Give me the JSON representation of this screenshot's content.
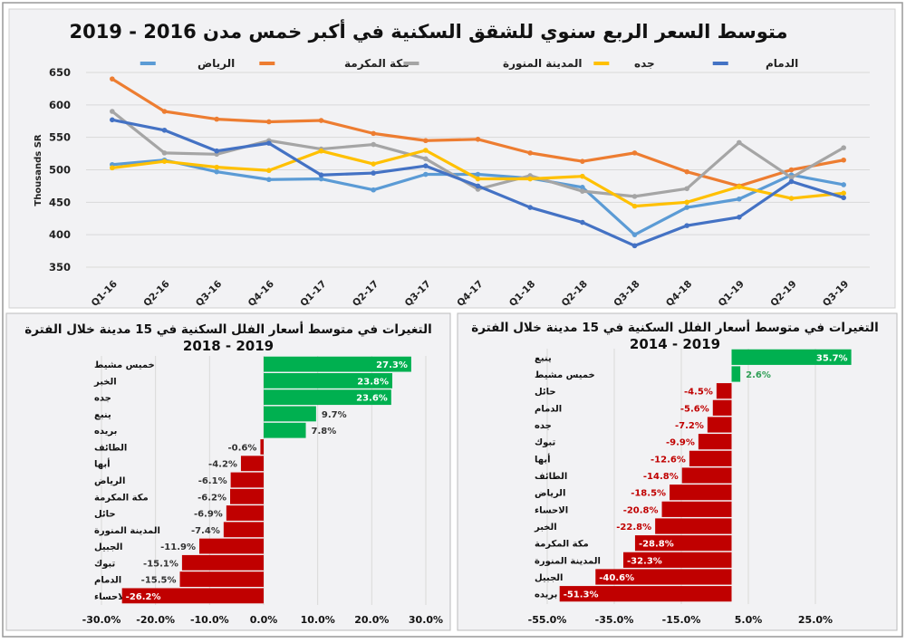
{
  "chart_data": [
    {
      "type": "line",
      "title": "متوسط السعر الربع سنوي للشقق السكنية في أكبر خمس مدن 2016 - 2019",
      "ylabel": "Thousands SR",
      "xlabel": "",
      "ylim": [
        350,
        650
      ],
      "yticks": [
        350,
        400,
        450,
        500,
        550,
        600,
        650
      ],
      "grid": true,
      "legend": "top",
      "categories": [
        "Q1-16",
        "Q2-16",
        "Q3-16",
        "Q4-16",
        "Q1-17",
        "Q2-17",
        "Q3-17",
        "Q4-17",
        "Q1-18",
        "Q2-18",
        "Q3-18",
        "Q4-18",
        "Q1-19",
        "Q2-19",
        "Q3-19"
      ],
      "series": [
        {
          "name": "الرياض",
          "color": "#5b9bd5",
          "values": [
            508,
            515,
            497,
            485,
            486,
            469,
            493,
            493,
            487,
            473,
            400,
            442,
            455,
            492,
            477
          ]
        },
        {
          "name": "مكة المكرمة",
          "color": "#ed7d31",
          "values": [
            640,
            590,
            578,
            574,
            576,
            556,
            545,
            547,
            526,
            513,
            526,
            497,
            475,
            500,
            515
          ]
        },
        {
          "name": "المدينة المنورة",
          "color": "#a5a5a5",
          "values": [
            590,
            526,
            524,
            545,
            532,
            539,
            517,
            470,
            491,
            467,
            459,
            471,
            542,
            488,
            534
          ]
        },
        {
          "name": "جده",
          "color": "#ffc000",
          "values": [
            503,
            513,
            504,
            499,
            529,
            509,
            530,
            486,
            486,
            490,
            444,
            450,
            474,
            456,
            464
          ]
        },
        {
          "name": "الدمام",
          "color": "#4472c4",
          "values": [
            577,
            561,
            529,
            541,
            492,
            495,
            506,
            475,
            442,
            419,
            383,
            414,
            427,
            482,
            457
          ]
        }
      ]
    },
    {
      "type": "bar",
      "orientation": "horizontal",
      "title": "التغيرات في متوسط أسعار الفلل السكنية في 15 مدينة خلال الفترة",
      "subtitle": "2018 - 2019",
      "xlim": [
        -30,
        30
      ],
      "xticks": [
        "-30.0%",
        "-20.0%",
        "-10.0%",
        "0.0%",
        "10.0%",
        "20.0%",
        "30.0%"
      ],
      "xtick_values": [
        -30,
        -20,
        -10,
        0,
        10,
        20,
        30
      ],
      "grid": true,
      "positive_color": "#00b050",
      "negative_color": "#c00000",
      "categories": [
        "خميس مشيط",
        "الخبر",
        "جده",
        "ينبع",
        "بريده",
        "الطائف",
        "أبها",
        "الرياض",
        "مكة المكرمة",
        "حائل",
        "المدينة المنورة",
        "الجبيل",
        "تبوك",
        "الدمام",
        "الاحساء"
      ],
      "values": [
        27.3,
        23.8,
        23.6,
        9.7,
        7.8,
        -0.6,
        -4.2,
        -6.1,
        -6.2,
        -6.9,
        -7.4,
        -11.9,
        -15.1,
        -15.5,
        -26.2
      ],
      "labels": [
        "27.3%",
        "23.8%",
        "23.6%",
        "9.7%",
        "7.8%",
        "-0.6%",
        "-4.2%",
        "-6.1%",
        "-6.2%",
        "-6.9%",
        "-7.4%",
        "-11.9%",
        "-15.1%",
        "-15.5%",
        "-26.2%"
      ]
    },
    {
      "type": "bar",
      "orientation": "horizontal",
      "title": "التغيرات في متوسط أسعار الفلل السكنية في 15 مدينة خلال الفترة",
      "subtitle": "2014 - 2019",
      "xlim": [
        -55,
        35
      ],
      "xticks": [
        "-55.0%",
        "-35.0%",
        "-15.0%",
        "5.0%",
        "25.0%"
      ],
      "xtick_values": [
        -55,
        -35,
        -15,
        5,
        25
      ],
      "grid": true,
      "positive_color": "#00b050",
      "negative_color": "#c00000",
      "categories": [
        "ينبع",
        "خميس مشيط",
        "حائل",
        "الدمام",
        "جده",
        "تبوك",
        "أبها",
        "الطائف",
        "الرياض",
        "الاحساء",
        "الخبر",
        "مكة المكرمة",
        "المدينة المنورة",
        "الجبيل",
        "بريده"
      ],
      "values": [
        35.7,
        2.6,
        -4.5,
        -5.6,
        -7.2,
        -9.9,
        -12.6,
        -14.8,
        -18.5,
        -20.8,
        -22.8,
        -28.8,
        -32.3,
        -40.6,
        -51.3
      ],
      "labels": [
        "35.7%",
        "2.6%",
        "-4.5%",
        "-5.6%",
        "-7.2%",
        "-9.9%",
        "-12.6%",
        "-14.8%",
        "-18.5%",
        "-20.8%",
        "-22.8%",
        "-28.8%",
        "-32.3%",
        "-40.6%",
        "-51.3%"
      ]
    }
  ]
}
